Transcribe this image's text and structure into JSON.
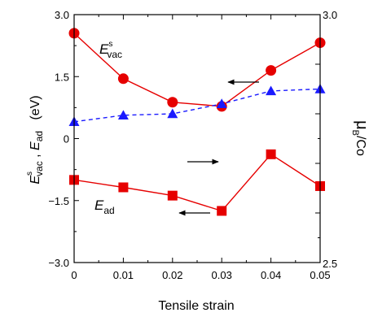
{
  "chart_data": {
    "type": "line",
    "x_label": "Tensile strain",
    "x_ticks": [
      "0",
      "0.01",
      "0.02",
      "0.03",
      "0.04",
      "0.05"
    ],
    "x_range": [
      0,
      0.05
    ],
    "left_axis": {
      "label_parts": [
        "E",
        "s",
        "vac",
        " , ",
        "E",
        "ad",
        "   (eV)"
      ],
      "range": [
        -3.0,
        3.0
      ],
      "ticks": [
        3.0,
        1.5,
        0,
        -1.5,
        -3.0
      ],
      "tick_labels": [
        "3.0",
        "1.5",
        "0",
        "−1.5",
        "−3.0"
      ]
    },
    "right_axis": {
      "label_parts": [
        "μ",
        "B",
        "/Co"
      ],
      "range": [
        2.5,
        3.0
      ],
      "tick_labels": [
        "3.0",
        "2.5"
      ]
    },
    "series": [
      {
        "axis": "left",
        "marker": "circle",
        "color": "#e60000",
        "line": "solid",
        "x": [
          0,
          0.01,
          0.02,
          0.03,
          0.04,
          0.05
        ],
        "y": [
          2.55,
          1.45,
          0.88,
          0.78,
          1.65,
          2.32
        ]
      },
      {
        "axis": "left",
        "marker": "square",
        "color": "#e60000",
        "line": "solid",
        "x": [
          0,
          0.01,
          0.02,
          0.03,
          0.04,
          0.05
        ],
        "y": [
          -1.0,
          -1.18,
          -1.38,
          -1.75,
          -0.38,
          -1.15
        ]
      },
      {
        "axis": "right",
        "marker": "triangle",
        "color": "#1a1aff",
        "line": "dashed",
        "x": [
          0,
          0.01,
          0.02,
          0.03,
          0.04,
          0.05
        ],
        "y": [
          2.784,
          2.797,
          2.8,
          2.82,
          2.846,
          2.85
        ]
      }
    ],
    "annotations": [
      {
        "id": "evac",
        "parts": [
          "E",
          "s",
          "vac"
        ]
      },
      {
        "id": "ead",
        "parts": [
          "E",
          "ad"
        ]
      }
    ]
  }
}
